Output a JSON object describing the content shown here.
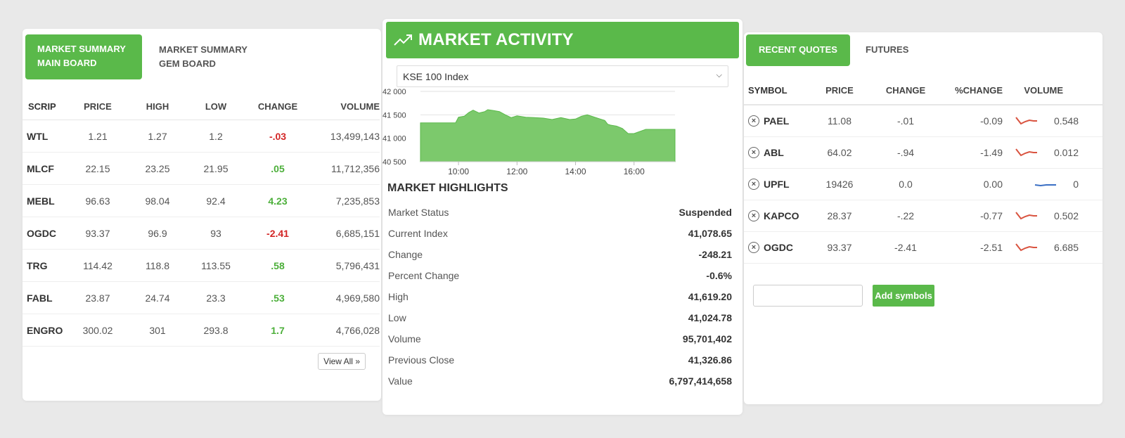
{
  "colors": {
    "accent": "#5ab94a",
    "positive": "#4caf3a",
    "negative": "#d32626",
    "neutral_spark": "#3a6fc4"
  },
  "market_summary": {
    "tab_main": "MARKET SUMMARY MAIN BOARD",
    "tab_gem": "MARKET SUMMARY GEM BOARD",
    "columns": [
      "SCRIP",
      "PRICE",
      "HIGH",
      "LOW",
      "CHANGE",
      "VOLUME"
    ],
    "rows": [
      {
        "scrip": "WTL",
        "price": "1.21",
        "high": "1.27",
        "low": "1.2",
        "change": "-.03",
        "direction": "neg",
        "volume": "13,499,143"
      },
      {
        "scrip": "MLCF",
        "price": "22.15",
        "high": "23.25",
        "low": "21.95",
        "change": ".05",
        "direction": "pos",
        "volume": "11,712,356"
      },
      {
        "scrip": "MEBL",
        "price": "96.63",
        "high": "98.04",
        "low": "92.4",
        "change": "4.23",
        "direction": "pos",
        "volume": "7,235,853"
      },
      {
        "scrip": "OGDC",
        "price": "93.37",
        "high": "96.9",
        "low": "93",
        "change": "-2.41",
        "direction": "neg",
        "volume": "6,685,151"
      },
      {
        "scrip": "TRG",
        "price": "114.42",
        "high": "118.8",
        "low": "113.55",
        "change": ".58",
        "direction": "pos",
        "volume": "5,796,431"
      },
      {
        "scrip": "FABL",
        "price": "23.87",
        "high": "24.74",
        "low": "23.3",
        "change": ".53",
        "direction": "pos",
        "volume": "4,969,580"
      },
      {
        "scrip": "ENGRO",
        "price": "300.02",
        "high": "301",
        "low": "293.8",
        "change": "1.7",
        "direction": "pos",
        "volume": "4,766,028"
      }
    ],
    "view_all": "View All"
  },
  "market_activity": {
    "title": "MARKET ACTIVITY",
    "icon": "trend-up-icon",
    "selected_index": "KSE 100 Index",
    "highlights_title": "MARKET HIGHLIGHTS",
    "highlights": [
      {
        "label": "Market Status",
        "value": "Suspended"
      },
      {
        "label": "Current Index",
        "value": "41,078.65"
      },
      {
        "label": "Change",
        "value": "-248.21"
      },
      {
        "label": "Percent Change",
        "value": "-0.6%"
      },
      {
        "label": "High",
        "value": "41,619.20"
      },
      {
        "label": "Low",
        "value": "41,024.78"
      },
      {
        "label": "Volume",
        "value": "95,701,402"
      },
      {
        "label": "Previous Close",
        "value": "41,326.86"
      },
      {
        "label": "Value",
        "value": "6,797,414,658"
      }
    ]
  },
  "chart_data": {
    "type": "area",
    "y_tick_labels": [
      "42 000",
      "41 500",
      "41 000",
      "40 500"
    ],
    "y_ticks": [
      42000,
      41500,
      41000,
      40500
    ],
    "x_tick_labels": [
      "10:00",
      "12:00",
      "14:00",
      "16:00"
    ],
    "x_ticks": [
      10,
      12,
      14,
      16
    ],
    "xlim": [
      8.7,
      17.4
    ],
    "ylim": [
      40500,
      42000
    ],
    "grid": true,
    "x": [
      8.7,
      9.9,
      10.0,
      10.2,
      10.35,
      10.5,
      10.7,
      10.9,
      11.0,
      11.2,
      11.4,
      11.6,
      11.8,
      12.0,
      12.3,
      12.6,
      12.9,
      13.2,
      13.5,
      13.8,
      14.0,
      14.2,
      14.4,
      14.6,
      14.8,
      15.0,
      15.1,
      15.2,
      15.4,
      15.6,
      15.8,
      16.0,
      16.4,
      17.0,
      17.4
    ],
    "y": [
      41330,
      41330,
      41450,
      41470,
      41550,
      41600,
      41540,
      41570,
      41610,
      41590,
      41570,
      41500,
      41440,
      41480,
      41450,
      41440,
      41430,
      41400,
      41440,
      41400,
      41410,
      41470,
      41500,
      41460,
      41420,
      41380,
      41300,
      41280,
      41260,
      41210,
      41100,
      41100,
      41190,
      41190,
      41190
    ]
  },
  "recent_quotes": {
    "tab_recent": "RECENT QUOTES",
    "tab_futures": "FUTURES",
    "columns": [
      "SYMBOL",
      "PRICE",
      "CHANGE",
      "%CHANGE",
      "VOLUME"
    ],
    "rows": [
      {
        "symbol": "PAEL",
        "price": "11.08",
        "change": "-.01",
        "pct_change": "-0.09",
        "trend": "down",
        "volume": "0.548"
      },
      {
        "symbol": "ABL",
        "price": "64.02",
        "change": "-.94",
        "pct_change": "-1.49",
        "trend": "down",
        "volume": "0.012"
      },
      {
        "symbol": "UPFL",
        "price": "19426",
        "change": "0.0",
        "pct_change": "0.00",
        "trend": "flat",
        "volume": "0"
      },
      {
        "symbol": "KAPCO",
        "price": "28.37",
        "change": "-.22",
        "pct_change": "-0.77",
        "trend": "down",
        "volume": "0.502"
      },
      {
        "symbol": "OGDC",
        "price": "93.37",
        "change": "-2.41",
        "pct_change": "-2.51",
        "trend": "down",
        "volume": "6.685"
      }
    ],
    "symbol_input_value": "",
    "add_button": "Add symbols"
  }
}
